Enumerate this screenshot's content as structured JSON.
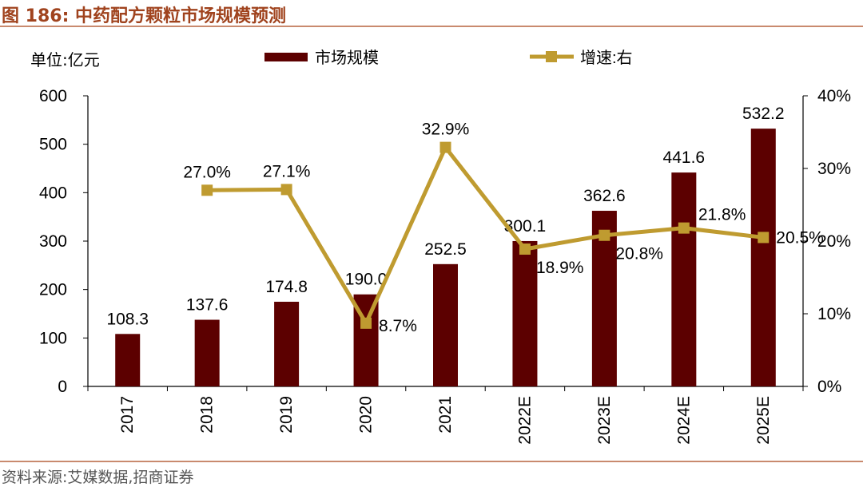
{
  "figure_title": "图 186:  中药配方颗粒市场规模预测",
  "source": "资料来源:艾媒数据,招商证券",
  "colors": {
    "bar": "#5c0000",
    "line": "#bf9b30",
    "title": "#a0431e",
    "rule": "#c98a6e"
  },
  "chart_data": {
    "type": "bar",
    "title": "中药配方颗粒市场规模预测",
    "unit_label": "单位:亿元",
    "categories": [
      "2017",
      "2018",
      "2019",
      "2020",
      "2021",
      "2022E",
      "2023E",
      "2024E",
      "2025E"
    ],
    "series": [
      {
        "name": "市场规模",
        "type": "bar",
        "axis": "left",
        "values": [
          108.3,
          137.6,
          174.8,
          190.0,
          252.5,
          300.1,
          362.6,
          441.6,
          532.2
        ],
        "labels": [
          "108.3",
          "137.6",
          "174.8",
          "190.0",
          "252.5",
          "300.1",
          "362.6",
          "441.6",
          "532.2"
        ]
      },
      {
        "name": "增速:右",
        "type": "line",
        "axis": "right",
        "values": [
          null,
          27.0,
          27.1,
          8.7,
          32.9,
          18.9,
          20.8,
          21.8,
          20.5
        ],
        "labels": [
          "",
          "27.0%",
          "27.1%",
          "8.7%",
          "32.9%",
          "18.9%",
          "20.8%",
          "21.8%",
          "20.5%"
        ]
      }
    ],
    "ylim": [
      0,
      600
    ],
    "yticks": [
      "0",
      "100",
      "200",
      "300",
      "400",
      "500",
      "600"
    ],
    "y2lim": [
      0,
      40
    ],
    "y2ticks": [
      "0%",
      "10%",
      "20%",
      "30%",
      "40%"
    ],
    "legend_position": "top",
    "grid": false
  }
}
